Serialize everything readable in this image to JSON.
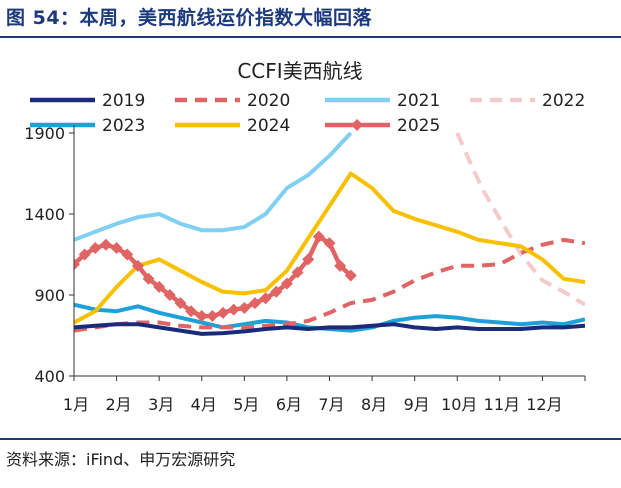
{
  "figure": {
    "title": "图 54：本周，美西航线运价指数大幅回落",
    "source": "资料来源：iFind、申万宏源研究"
  },
  "chart_data": {
    "type": "line",
    "title": "CCFI美西航线",
    "xlabel": "",
    "ylabel": "",
    "ylim": [
      400,
      1900
    ],
    "yticks": [
      400,
      900,
      1400,
      1900
    ],
    "xlim": [
      1,
      13
    ],
    "xtick_labels": [
      "1月",
      "2月",
      "3月",
      "4月",
      "5月",
      "6月",
      "7月",
      "8月",
      "9月",
      "10月",
      "11月",
      "12月"
    ],
    "grid": false,
    "legend": "top",
    "x_unit": "month (1 = January)",
    "series": [
      {
        "name": "2019",
        "color": "#1a2b7c",
        "dash": "solid",
        "marker": "none",
        "points": [
          [
            1,
            700
          ],
          [
            1.5,
            710
          ],
          [
            2,
            720
          ],
          [
            2.5,
            720
          ],
          [
            3,
            700
          ],
          [
            3.5,
            680
          ],
          [
            4,
            660
          ],
          [
            4.5,
            665
          ],
          [
            5,
            675
          ],
          [
            5.5,
            690
          ],
          [
            6,
            700
          ],
          [
            6.5,
            690
          ],
          [
            7,
            700
          ],
          [
            7.5,
            700
          ],
          [
            8,
            710
          ],
          [
            8.5,
            720
          ],
          [
            9,
            700
          ],
          [
            9.5,
            690
          ],
          [
            10,
            700
          ],
          [
            10.5,
            690
          ],
          [
            11,
            690
          ],
          [
            11.5,
            690
          ],
          [
            12,
            700
          ],
          [
            12.5,
            700
          ],
          [
            13,
            710
          ]
        ]
      },
      {
        "name": "2020",
        "color": "#e06464",
        "dash": "dash",
        "marker": "none",
        "points": [
          [
            1,
            680
          ],
          [
            1.5,
            700
          ],
          [
            2,
            720
          ],
          [
            2.5,
            730
          ],
          [
            3,
            730
          ],
          [
            3.5,
            710
          ],
          [
            4,
            700
          ],
          [
            4.5,
            700
          ],
          [
            5,
            700
          ],
          [
            5.5,
            710
          ],
          [
            6,
            720
          ],
          [
            6.5,
            740
          ],
          [
            7,
            790
          ],
          [
            7.5,
            850
          ],
          [
            8,
            870
          ],
          [
            8.5,
            920
          ],
          [
            9,
            990
          ],
          [
            9.5,
            1040
          ],
          [
            10,
            1080
          ],
          [
            10.5,
            1080
          ],
          [
            11,
            1090
          ],
          [
            11.5,
            1160
          ],
          [
            12,
            1210
          ],
          [
            12.5,
            1240
          ],
          [
            13,
            1220
          ]
        ]
      },
      {
        "name": "2021",
        "color": "#7fd0f2",
        "dash": "solid",
        "marker": "none",
        "points": [
          [
            1,
            1240
          ],
          [
            1.5,
            1290
          ],
          [
            2,
            1340
          ],
          [
            2.5,
            1380
          ],
          [
            3,
            1400
          ],
          [
            3.5,
            1340
          ],
          [
            4,
            1300
          ],
          [
            4.5,
            1300
          ],
          [
            5,
            1320
          ],
          [
            5.5,
            1400
          ],
          [
            6,
            1560
          ],
          [
            6.5,
            1640
          ],
          [
            7,
            1760
          ],
          [
            7.5,
            1900
          ]
        ]
      },
      {
        "name": "2022",
        "color": "#f4caca",
        "dash": "dash",
        "marker": "none",
        "points": [
          [
            10,
            1900
          ],
          [
            10.3,
            1720
          ],
          [
            10.6,
            1550
          ],
          [
            11,
            1370
          ],
          [
            11.5,
            1150
          ],
          [
            12,
            990
          ],
          [
            12.5,
            920
          ],
          [
            13,
            840
          ]
        ]
      },
      {
        "name": "2023",
        "color": "#1fa0d8",
        "dash": "solid",
        "marker": "none",
        "points": [
          [
            1,
            840
          ],
          [
            1.5,
            810
          ],
          [
            2,
            800
          ],
          [
            2.5,
            830
          ],
          [
            3,
            790
          ],
          [
            3.5,
            760
          ],
          [
            4,
            730
          ],
          [
            4.5,
            700
          ],
          [
            5,
            720
          ],
          [
            5.5,
            740
          ],
          [
            6,
            730
          ],
          [
            6.5,
            700
          ],
          [
            7,
            690
          ],
          [
            7.5,
            680
          ],
          [
            8,
            700
          ],
          [
            8.5,
            740
          ],
          [
            9,
            760
          ],
          [
            9.5,
            770
          ],
          [
            10,
            760
          ],
          [
            10.5,
            740
          ],
          [
            11,
            730
          ],
          [
            11.5,
            720
          ],
          [
            12,
            730
          ],
          [
            12.5,
            720
          ],
          [
            13,
            750
          ]
        ]
      },
      {
        "name": "2024",
        "color": "#f7c000",
        "dash": "solid",
        "marker": "none",
        "points": [
          [
            1,
            730
          ],
          [
            1.5,
            800
          ],
          [
            2,
            950
          ],
          [
            2.5,
            1080
          ],
          [
            3,
            1120
          ],
          [
            3.5,
            1050
          ],
          [
            4,
            980
          ],
          [
            4.5,
            920
          ],
          [
            5,
            910
          ],
          [
            5.5,
            930
          ],
          [
            6,
            1050
          ],
          [
            6.5,
            1250
          ],
          [
            7,
            1450
          ],
          [
            7.5,
            1650
          ],
          [
            8,
            1560
          ],
          [
            8.5,
            1420
          ],
          [
            9,
            1370
          ],
          [
            9.5,
            1330
          ],
          [
            10,
            1290
          ],
          [
            10.5,
            1240
          ],
          [
            11,
            1220
          ],
          [
            11.5,
            1200
          ],
          [
            12,
            1120
          ],
          [
            12.5,
            1000
          ],
          [
            13,
            980
          ]
        ]
      },
      {
        "name": "2025",
        "color": "#e06464",
        "dash": "solid",
        "marker": "diamond",
        "points": [
          [
            1,
            1090
          ],
          [
            1.25,
            1150
          ],
          [
            1.5,
            1190
          ],
          [
            1.75,
            1210
          ],
          [
            2,
            1190
          ],
          [
            2.25,
            1150
          ],
          [
            2.5,
            1080
          ],
          [
            2.75,
            1000
          ],
          [
            3,
            950
          ],
          [
            3.25,
            900
          ],
          [
            3.5,
            850
          ],
          [
            3.75,
            800
          ],
          [
            4,
            770
          ],
          [
            4.25,
            770
          ],
          [
            4.5,
            790
          ],
          [
            4.75,
            810
          ],
          [
            5,
            820
          ],
          [
            5.25,
            850
          ],
          [
            5.5,
            880
          ],
          [
            5.75,
            920
          ],
          [
            6,
            970
          ],
          [
            6.25,
            1040
          ],
          [
            6.5,
            1120
          ],
          [
            6.75,
            1260
          ],
          [
            7,
            1220
          ],
          [
            7.25,
            1080
          ],
          [
            7.5,
            1020
          ]
        ]
      }
    ]
  }
}
